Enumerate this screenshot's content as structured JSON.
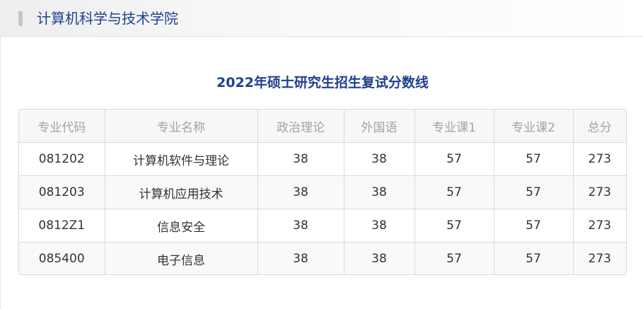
{
  "header": {
    "title": "计算机科学与技术学院"
  },
  "main": {
    "title": "2022年硕士研究生招生复试分数线"
  },
  "table": {
    "headers": [
      "专业代码",
      "专业名称",
      "政治理论",
      "外国语",
      "专业课1",
      "专业课2",
      "总分"
    ],
    "rows": [
      [
        "081202",
        "计算机软件与理论",
        "38",
        "38",
        "57",
        "57",
        "273"
      ],
      [
        "081203",
        "计算机应用技术",
        "38",
        "38",
        "57",
        "57",
        "273"
      ],
      [
        "0812Z1",
        "信息安全",
        "38",
        "38",
        "57",
        "57",
        "273"
      ],
      [
        "085400",
        "电子信息",
        "38",
        "38",
        "57",
        "57",
        "273"
      ]
    ]
  },
  "colors": {
    "title_blue": "#1f3f8f",
    "header_text_gray": "#a3a3a3",
    "border_gray": "#dadada"
  }
}
